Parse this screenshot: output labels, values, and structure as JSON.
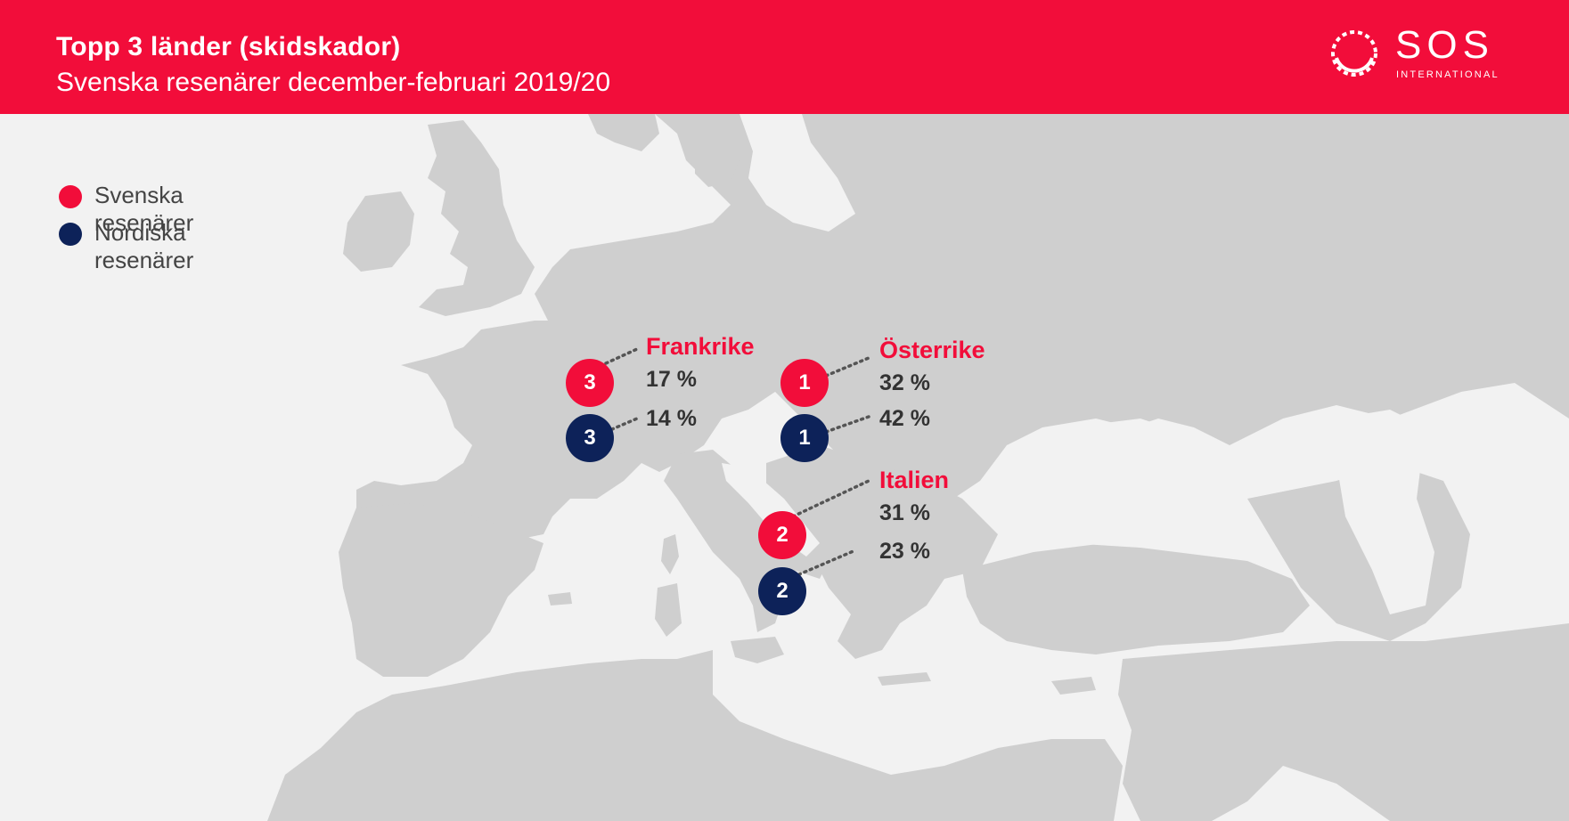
{
  "header": {
    "title": "Topp 3 länder (skidskador)",
    "subtitle": "Svenska resenärer december-februari 2019/20"
  },
  "logo": {
    "brand": "SOS",
    "sub": "INTERNATIONAL"
  },
  "colors": {
    "header_bg": "#f20d3a",
    "swedish": "#f20d3a",
    "nordic": "#0d2259",
    "land": "#cfcfcf",
    "sea": "#f2f2f2"
  },
  "legend": [
    {
      "label": "Svenska resenärer",
      "color": "#f20d3a"
    },
    {
      "label": "Nordiska resenärer",
      "color": "#0d2259"
    }
  ],
  "markers": {
    "austria": {
      "name": "Österrike",
      "swedish": {
        "rank": "1",
        "pct": "32 %"
      },
      "nordic": {
        "rank": "1",
        "pct": "42 %"
      }
    },
    "italy": {
      "name": "Italien",
      "swedish": {
        "rank": "2",
        "pct": "31 %"
      },
      "nordic": {
        "rank": "2",
        "pct": "23 %"
      }
    },
    "france": {
      "name": "Frankrike",
      "swedish": {
        "rank": "3",
        "pct": "17 %"
      },
      "nordic": {
        "rank": "3",
        "pct": "14 %"
      }
    }
  }
}
